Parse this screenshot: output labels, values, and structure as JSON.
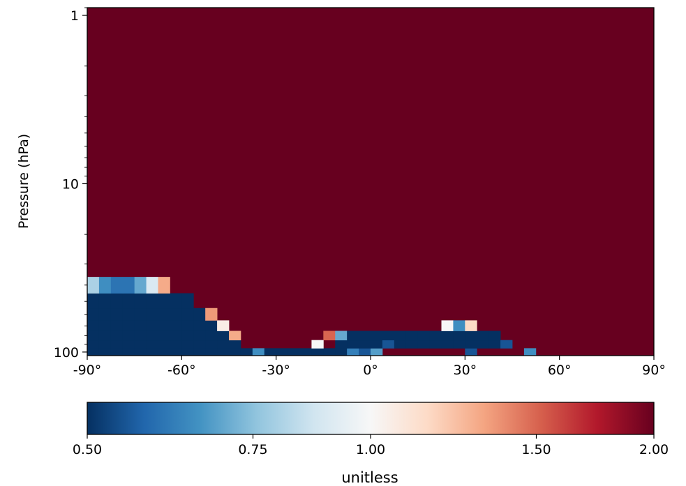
{
  "chart_data": {
    "type": "heatmap",
    "title": "",
    "xlabel": "",
    "ylabel": "Pressure (hPa)",
    "x_ticks": [
      "-90°",
      "-60°",
      "-30°",
      "0°",
      "30°",
      "60°",
      "90°"
    ],
    "x_tick_values": [
      -90,
      -60,
      -30,
      0,
      30,
      60,
      90
    ],
    "y_ticks": [
      "1",
      "10",
      "100"
    ],
    "y_tick_values": [
      1,
      10,
      100
    ],
    "y_scale": "log",
    "y_inverted": true,
    "xlim": [
      -90,
      90
    ],
    "ylim": [
      105,
      0.9
    ],
    "background_value": 2.0,
    "lat_edges": [
      -90,
      -86.25,
      -82.5,
      -78.75,
      -75,
      -71.25,
      -67.5,
      -63.75,
      -60,
      -56.25,
      -52.5,
      -48.75,
      -45,
      -41.25,
      -37.5,
      -33.75,
      -30,
      -26.25,
      -22.5,
      -18.75,
      -15,
      -11.25,
      -7.5,
      -3.75,
      0,
      3.75,
      7.5,
      11.25,
      15,
      18.75,
      22.5,
      26.25,
      30,
      33.75,
      37.5,
      41.25,
      45,
      48.75,
      52.5
    ],
    "pressure_levels": [
      100,
      90,
      80,
      70,
      60,
      50,
      40
    ],
    "grid_values": [
      [
        0.5,
        0.5,
        0.5,
        0.5,
        0.5,
        0.5,
        0.5,
        0.5,
        0.5,
        0.5,
        0.5,
        0.5,
        0.5,
        0.5,
        0.65,
        0.5,
        0.5,
        0.5,
        0.5,
        0.5,
        0.5,
        0.5,
        0.62,
        0.55,
        0.68,
        2.0,
        2.0,
        2.0,
        2.0,
        2.0,
        2.0,
        2.0,
        0.55,
        2.0,
        2.0,
        2.0,
        2.0,
        0.65
      ],
      [
        0.5,
        0.5,
        0.5,
        0.5,
        0.5,
        0.5,
        0.5,
        0.5,
        0.5,
        0.5,
        0.5,
        0.5,
        0.5,
        2.0,
        2.0,
        2.0,
        2.0,
        2.0,
        2.0,
        1.0,
        2.0,
        0.5,
        0.5,
        0.5,
        0.5,
        0.55,
        0.5,
        0.5,
        0.5,
        0.5,
        0.5,
        0.5,
        0.5,
        0.5,
        0.5,
        0.55,
        2.0,
        2.0
      ],
      [
        0.5,
        0.5,
        0.5,
        0.5,
        0.5,
        0.5,
        0.5,
        0.5,
        0.5,
        0.5,
        0.5,
        0.5,
        1.3,
        2.0,
        2.0,
        2.0,
        2.0,
        2.0,
        2.0,
        2.0,
        1.5,
        0.7,
        0.5,
        0.5,
        0.5,
        0.5,
        0.5,
        0.5,
        0.5,
        0.5,
        0.5,
        0.5,
        0.5,
        0.5,
        0.5,
        2.0,
        2.0,
        2.0
      ],
      [
        0.5,
        0.5,
        0.5,
        0.5,
        0.5,
        0.5,
        0.5,
        0.5,
        0.5,
        0.5,
        0.5,
        1.05,
        2.0,
        2.0,
        2.0,
        2.0,
        2.0,
        2.0,
        2.0,
        2.0,
        2.0,
        2.0,
        2.0,
        2.0,
        2.0,
        2.0,
        2.0,
        2.0,
        2.0,
        2.0,
        1.0,
        0.65,
        1.15,
        2.0,
        2.0,
        2.0,
        2.0,
        2.0
      ],
      [
        0.5,
        0.5,
        0.5,
        0.5,
        0.5,
        0.5,
        0.5,
        0.5,
        0.5,
        0.5,
        1.35,
        2.0,
        2.0,
        2.0,
        2.0,
        2.0,
        2.0,
        2.0,
        2.0,
        2.0,
        2.0,
        2.0,
        2.0,
        2.0,
        2.0,
        2.0,
        2.0,
        2.0,
        2.0,
        2.0,
        2.0,
        2.0,
        2.0,
        2.0,
        2.0,
        2.0,
        2.0,
        2.0
      ],
      [
        0.5,
        0.5,
        0.5,
        0.5,
        0.5,
        0.5,
        0.5,
        0.5,
        0.5,
        2.0,
        2.0,
        2.0,
        2.0,
        2.0,
        2.0,
        2.0,
        2.0,
        2.0,
        2.0,
        2.0,
        2.0,
        2.0,
        2.0,
        2.0,
        2.0,
        2.0,
        2.0,
        2.0,
        2.0,
        2.0,
        2.0,
        2.0,
        2.0,
        2.0,
        2.0,
        2.0,
        2.0,
        2.0
      ],
      [
        0.8,
        0.65,
        0.6,
        0.6,
        0.7,
        0.9,
        1.3,
        2.0,
        2.0,
        2.0,
        2.0,
        2.0,
        2.0,
        2.0,
        2.0,
        2.0,
        2.0,
        2.0,
        2.0,
        2.0,
        2.0,
        2.0,
        2.0,
        2.0,
        2.0,
        2.0,
        2.0,
        2.0,
        2.0,
        2.0,
        2.0,
        2.0,
        2.0,
        2.0,
        2.0,
        2.0,
        2.0,
        2.0
      ]
    ],
    "colorbar": {
      "colormap": "RdBu_r",
      "ticks": [
        "0.50",
        "0.75",
        "1.00",
        "1.50",
        "2.00"
      ],
      "tick_values": [
        0.5,
        0.75,
        1.0,
        1.5,
        2.0
      ],
      "scale": "log",
      "label": "unitless"
    }
  }
}
